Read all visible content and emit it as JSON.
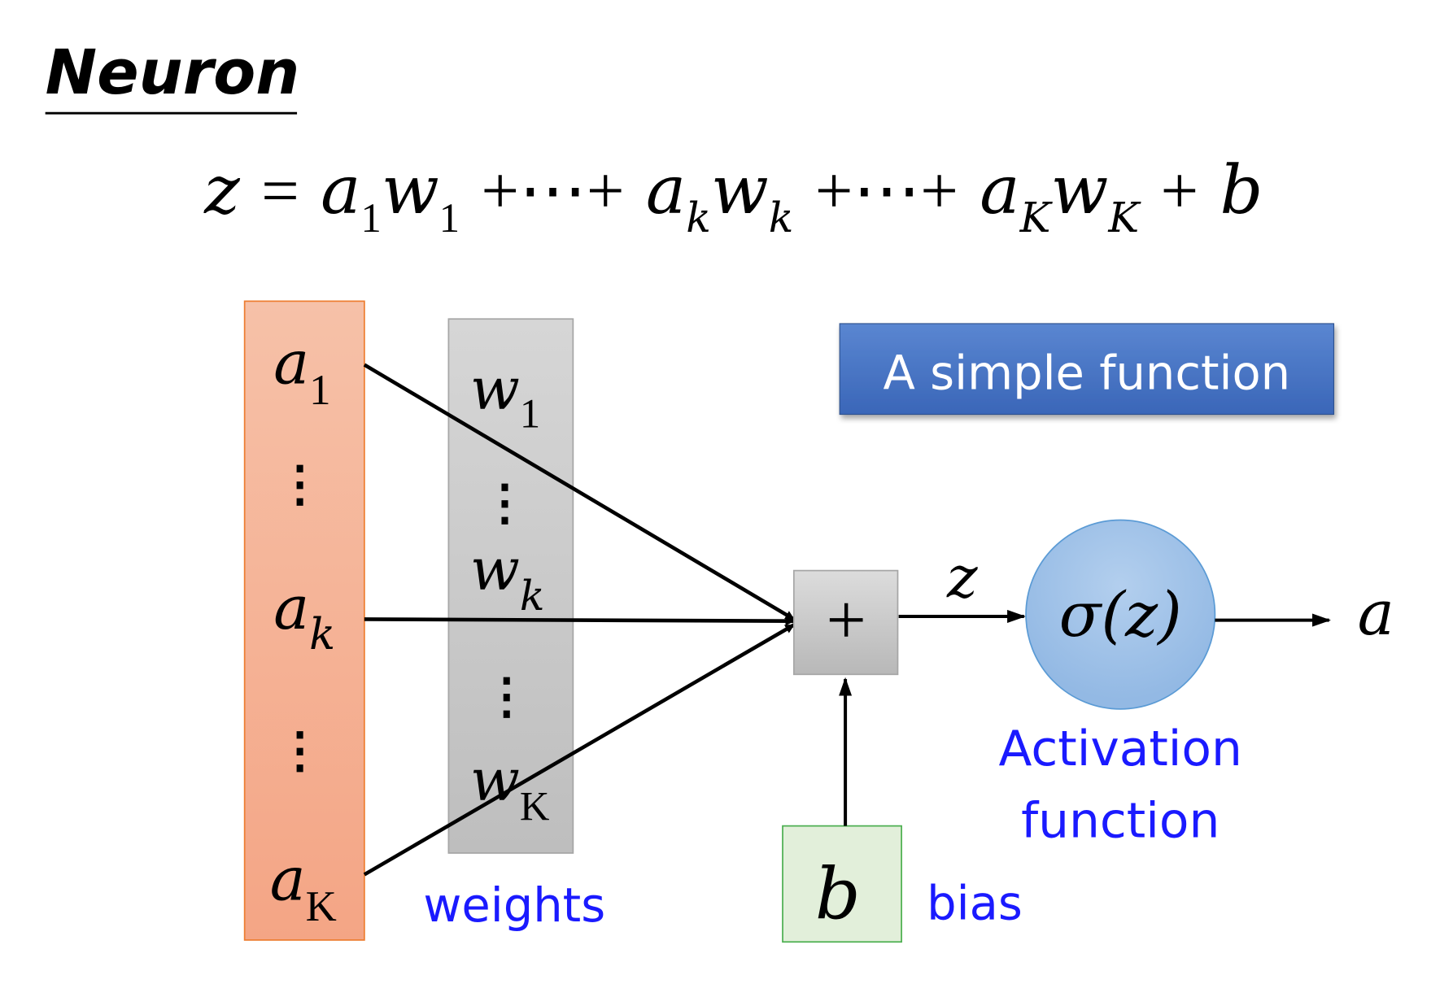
{
  "title": "Neuron",
  "equation": {
    "lhs": "z",
    "eq": "=",
    "terms": [
      {
        "base": "a",
        "sub": "1"
      },
      {
        "base": "w",
        "sub": "1"
      },
      {
        "op": "+⋯+"
      },
      {
        "base": "a",
        "sub": "k"
      },
      {
        "base": "w",
        "sub": "k"
      },
      {
        "op": "+⋯+"
      },
      {
        "base": "a",
        "sub": "K"
      },
      {
        "base": "w",
        "sub": "K"
      },
      {
        "op": "+"
      },
      {
        "base": "b"
      }
    ]
  },
  "inputs": {
    "a1": "a",
    "a1_sub": "1",
    "ak": "a",
    "ak_sub": "k",
    "aK": "a",
    "aK_sub": "K",
    "dots": "⋮"
  },
  "weights": {
    "w1": "w",
    "w1_sub": "1",
    "wk": "w",
    "wk_sub": "k",
    "wK": "w",
    "wK_sub": "K",
    "dots": "⋮",
    "label": "weights"
  },
  "sum_node": {
    "symbol": "+"
  },
  "z_label": "z",
  "activation": {
    "sigma": "σ",
    "arg": "(z)",
    "label_line1": "Activation",
    "label_line2": "function"
  },
  "output": "a",
  "bias": {
    "symbol": "b",
    "label": "bias"
  },
  "callout": "A simple function",
  "colors": {
    "label_blue": "#1a1aff",
    "input_fill": "#f4ab8b",
    "weight_fill": "#c4c4c4",
    "bias_fill": "#e2efda",
    "circle_fill": "#9dc0e6",
    "callout_fill": "#4472c4"
  }
}
